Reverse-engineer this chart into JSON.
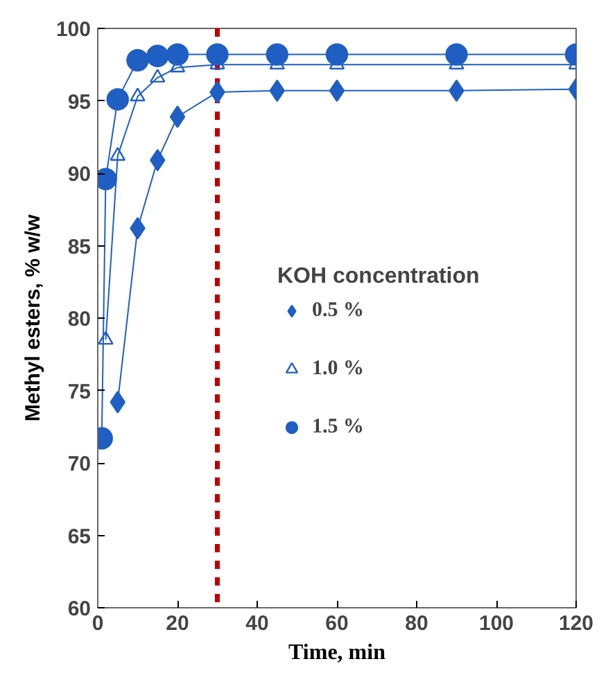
{
  "chart_data": {
    "type": "line",
    "xlabel": "Time, min",
    "ylabel": "Methyl esters, % w/w",
    "legend_title": "KOH concentration",
    "xlim": [
      0,
      120
    ],
    "ylim": [
      60,
      100
    ],
    "xticks": [
      0,
      20,
      40,
      60,
      80,
      100,
      120
    ],
    "yticks": [
      60,
      65,
      70,
      75,
      80,
      85,
      90,
      95,
      100
    ],
    "grid": false,
    "legend": "right",
    "line_style": "solid",
    "series": [
      {
        "name": "0.5 %",
        "color": "#1f5fc4",
        "marker": "diamond",
        "x": [
          5,
          10,
          15,
          20,
          30,
          45,
          60,
          90,
          120
        ],
        "values": [
          74.2,
          86.2,
          90.9,
          93.9,
          95.6,
          95.7,
          95.7,
          95.7,
          95.8
        ]
      },
      {
        "name": "1.0 %",
        "color": "#1f5fc4",
        "marker": "triangle",
        "x": [
          2,
          5,
          10,
          15,
          20,
          30,
          45,
          60,
          90,
          120
        ],
        "values": [
          78.5,
          91.2,
          95.3,
          96.6,
          97.3,
          97.5,
          97.5,
          97.5,
          97.5,
          97.5
        ]
      },
      {
        "name": "1.5 %",
        "color": "#1f5fc4",
        "marker": "circle",
        "x": [
          1,
          2,
          5,
          10,
          15,
          20,
          30,
          45,
          60,
          90,
          120
        ],
        "values": [
          71.7,
          89.6,
          95.1,
          97.8,
          98.1,
          98.2,
          98.2,
          98.2,
          98.2,
          98.2,
          98.2
        ]
      }
    ],
    "ref_lines": [
      {
        "axis": "x",
        "value": 30,
        "label": null,
        "color": "#c00000",
        "line_style": "dashed"
      }
    ]
  }
}
